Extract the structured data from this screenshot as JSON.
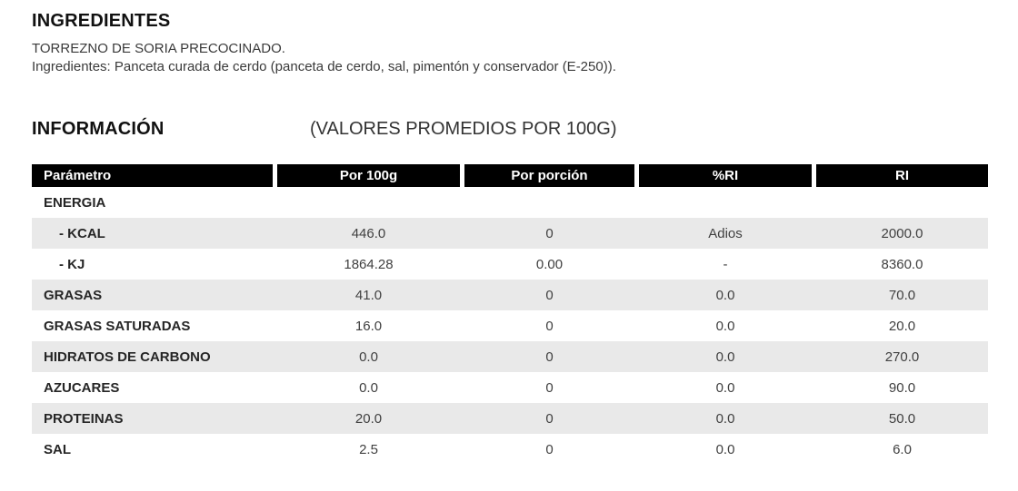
{
  "ingredients_section": {
    "title": "INGREDIENTES",
    "product_line": "TORREZNO DE SORIA PRECOCINADO.",
    "composition_line": "Ingredientes: Panceta curada de cerdo (panceta de cerdo, sal, pimentón y conservador (E-250))."
  },
  "info_section": {
    "title": "INFORMACIÓN",
    "subtitle": "(VALORES PROMEDIOS POR 100G)"
  },
  "table": {
    "columns": [
      "Parámetro",
      "Por 100g",
      "Por porción",
      "%RI",
      "RI"
    ],
    "rows": [
      {
        "label": "ENERGIA",
        "indent": false,
        "values": [
          "",
          "",
          "",
          ""
        ]
      },
      {
        "label": "- KCAL",
        "indent": true,
        "values": [
          "446.0",
          "0",
          "Adios",
          "2000.0"
        ]
      },
      {
        "label": "- KJ",
        "indent": true,
        "values": [
          "1864.28",
          "0.00",
          "-",
          "8360.0"
        ]
      },
      {
        "label": "GRASAS",
        "indent": false,
        "values": [
          "41.0",
          "0",
          "0.0",
          "70.0"
        ]
      },
      {
        "label": "GRASAS SATURADAS",
        "indent": false,
        "values": [
          "16.0",
          "0",
          "0.0",
          "20.0"
        ]
      },
      {
        "label": "HIDRATOS DE CARBONO",
        "indent": false,
        "values": [
          "0.0",
          "0",
          "0.0",
          "270.0"
        ]
      },
      {
        "label": "AZUCARES",
        "indent": false,
        "values": [
          "0.0",
          "0",
          "0.0",
          "90.0"
        ]
      },
      {
        "label": "PROTEINAS",
        "indent": false,
        "values": [
          "20.0",
          "0",
          "0.0",
          "50.0"
        ]
      },
      {
        "label": "SAL",
        "indent": false,
        "values": [
          "2.5",
          "0",
          "0.0",
          "6.0"
        ]
      }
    ]
  },
  "colors": {
    "header_bg": "#000000",
    "header_text": "#ffffff",
    "shaded_row_bg": "#e9e9e9"
  }
}
